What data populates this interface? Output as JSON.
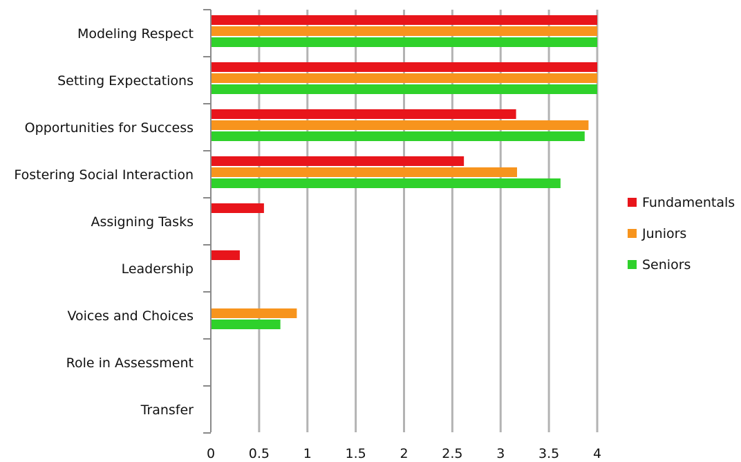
{
  "chart_data": {
    "type": "bar",
    "orientation": "horizontal",
    "title": "",
    "xlabel": "",
    "ylabel": "",
    "categories": [
      "Modeling Respect",
      "Setting Expectations",
      "Opportunities for Success",
      "Fostering Social Interaction",
      "Assigning Tasks",
      "Leadership",
      "Voices and Choices",
      "Role in Assessment",
      "Transfer"
    ],
    "series": [
      {
        "name": "Fundamentals",
        "color": "#e8151b",
        "values": [
          4,
          4,
          3.16,
          2.62,
          0.55,
          0.3,
          0,
          0,
          0
        ]
      },
      {
        "name": "Juniors",
        "color": "#f7941d",
        "values": [
          4,
          4,
          3.91,
          3.17,
          0,
          0,
          0.89,
          0,
          0
        ]
      },
      {
        "name": "Seniors",
        "color": "#2fd12b",
        "values": [
          4,
          4,
          3.87,
          3.62,
          0,
          0,
          0.72,
          0,
          0
        ]
      }
    ],
    "xlim": [
      0,
      4
    ],
    "ticks": [
      "0",
      "0.5",
      "1",
      "1.5",
      "2",
      "2.5",
      "3",
      "3.5",
      "4"
    ],
    "tick_values": [
      0,
      0.5,
      1,
      1.5,
      2,
      2.5,
      3,
      3.5,
      4
    ],
    "grid": "vertical",
    "legend": "right"
  }
}
